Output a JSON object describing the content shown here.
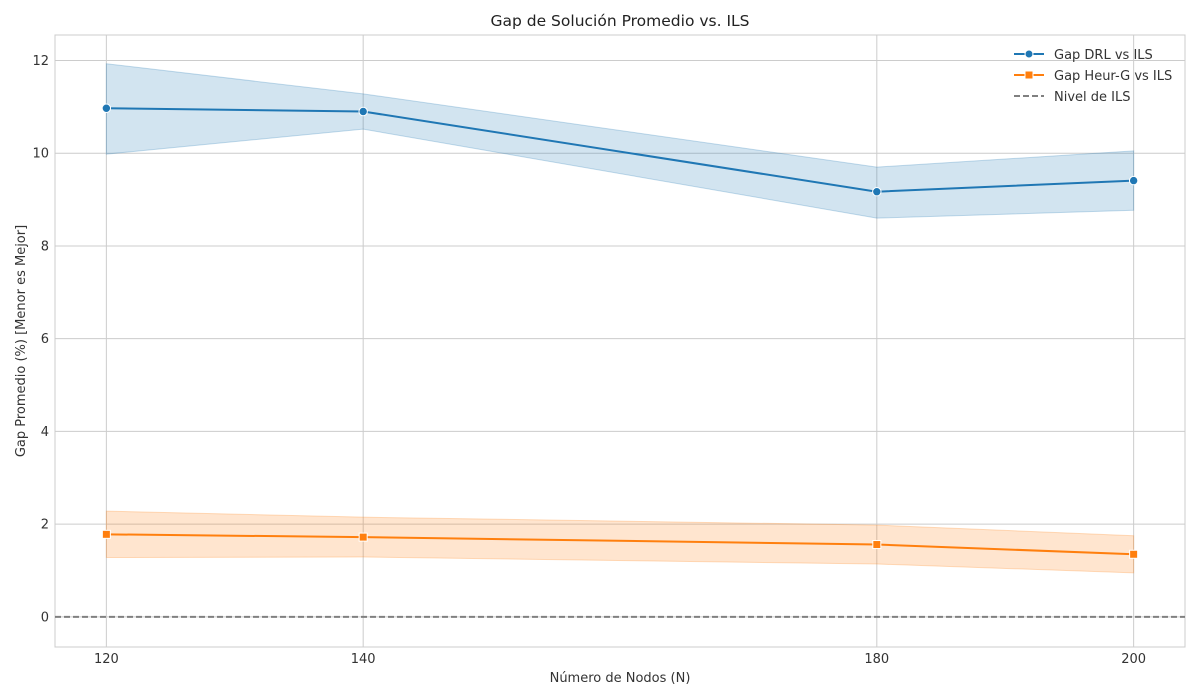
{
  "chart_data": {
    "type": "line",
    "title": "Gap de Solución Promedio vs. ILS",
    "xlabel": "Número de Nodos (N)",
    "ylabel": "Gap Promedio (%) [Menor es Mejor]",
    "x": [
      120,
      140,
      180,
      200
    ],
    "xticks": [
      120,
      140,
      180,
      200
    ],
    "yticks": [
      0,
      2,
      4,
      6,
      8,
      10,
      12
    ],
    "xlim": [
      116,
      204
    ],
    "ylim": [
      -0.65,
      12.55
    ],
    "grid": true,
    "legend_position": "top-right",
    "series": [
      {
        "name": "Gap DRL vs ILS",
        "color": "#1f77b4",
        "marker": "circle",
        "values": [
          10.97,
          10.9,
          9.17,
          9.41
        ],
        "lower": [
          9.98,
          10.52,
          8.6,
          8.77
        ],
        "upper": [
          11.93,
          11.28,
          9.7,
          10.05
        ]
      },
      {
        "name": "Gap Heur-G vs ILS",
        "color": "#ff7f0e",
        "marker": "square",
        "values": [
          1.78,
          1.72,
          1.56,
          1.35
        ],
        "lower": [
          1.28,
          1.29,
          1.14,
          0.95
        ],
        "upper": [
          2.28,
          2.15,
          1.98,
          1.75
        ]
      }
    ],
    "reference_line": {
      "name": "Nivel de ILS",
      "y": 0,
      "color": "#808080",
      "style": "dashed"
    }
  }
}
